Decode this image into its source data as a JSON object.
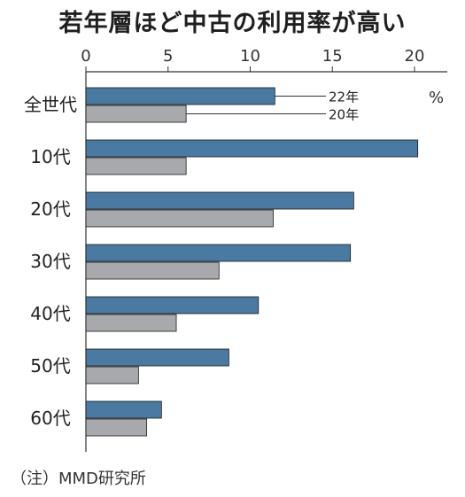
{
  "chart_data": {
    "type": "bar",
    "orientation": "horizontal",
    "title": "若年層ほど中古の利用率が高い",
    "unit": "%",
    "note": "（注）MMD研究所",
    "categories": [
      "全世代",
      "10代",
      "20代",
      "30代",
      "40代",
      "50代",
      "60代"
    ],
    "series": [
      {
        "name": "22年",
        "color": "#4a7aa2",
        "values": [
          11.5,
          20.2,
          16.3,
          16.1,
          10.5,
          8.7,
          4.6
        ]
      },
      {
        "name": "20年",
        "color": "#a7a9ac",
        "values": [
          6.1,
          6.1,
          11.4,
          8.1,
          5.5,
          3.2,
          3.7
        ]
      }
    ],
    "xlim": [
      0,
      22
    ],
    "xticks": [
      0,
      5,
      10,
      15,
      20
    ],
    "legend_placement": "inline-right-of-first-group"
  }
}
